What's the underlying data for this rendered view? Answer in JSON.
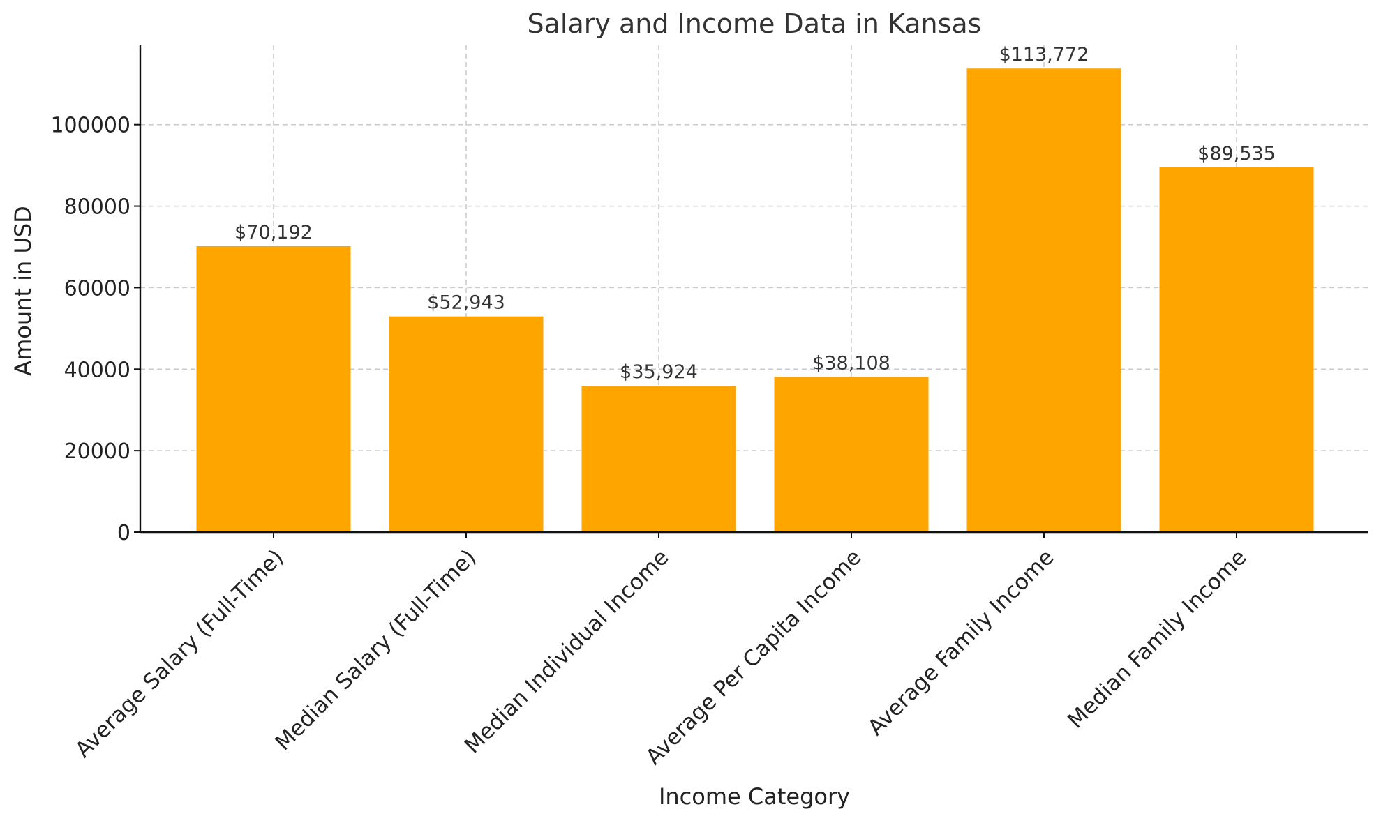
{
  "chart_data": {
    "type": "bar",
    "title": "Salary and Income Data in Kansas",
    "xlabel": "Income Category",
    "ylabel": "Amount in USD",
    "categories": [
      "Average Salary (Full-Time)",
      "Median Salary (Full-Time)",
      "Median Individual Income",
      "Average Per Capita Income",
      "Average Family Income",
      "Median Family Income"
    ],
    "values": [
      70192,
      52943,
      35924,
      38108,
      113772,
      89535
    ],
    "data_labels": [
      "$70,192",
      "$52,943",
      "$35,924",
      "$38,108",
      "$113,772",
      "$89,535"
    ],
    "ylim": [
      0,
      119460
    ],
    "yticks": [
      0,
      20000,
      40000,
      60000,
      80000,
      100000
    ],
    "ytick_labels": [
      "0",
      "20000",
      "40000",
      "60000",
      "80000",
      "100000"
    ],
    "grid": true,
    "bar_color": "#FFA500"
  }
}
